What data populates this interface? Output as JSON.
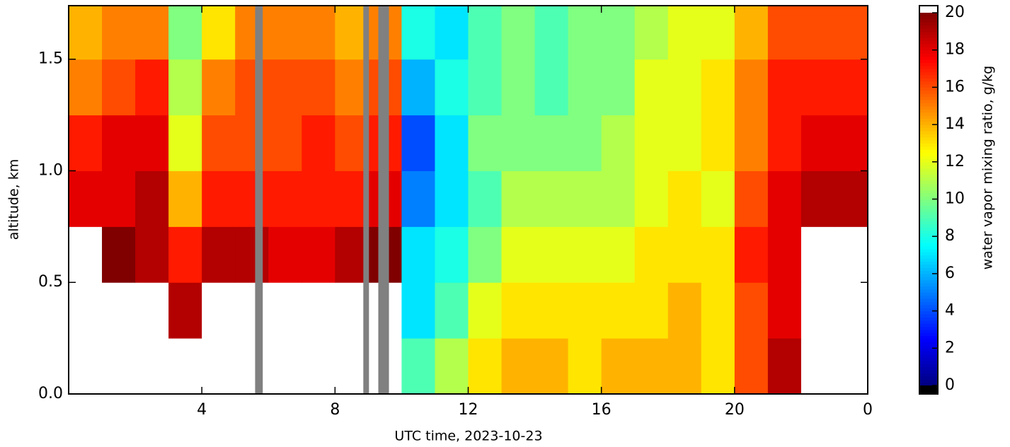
{
  "chart_data": {
    "type": "heatmap",
    "x_label": "UTC time,  2023-10-23",
    "y_label": "altitude, km",
    "colorbar_label": "water vapor mixing ratio, g/kg",
    "colormap": "jet",
    "over_color": "#ffffff",
    "under_color": "#000000",
    "missing_color": "#808080",
    "clim": [
      0,
      20
    ],
    "colorbar_ticks": [
      0,
      2,
      4,
      6,
      8,
      10,
      12,
      14,
      16,
      18,
      20
    ],
    "xlim": [
      0,
      24
    ],
    "xticks": [
      4,
      8,
      12,
      16,
      20,
      {
        "value": 24,
        "label": "0"
      }
    ],
    "ylim": [
      0,
      1.74
    ],
    "yticks": [
      {
        "value": 0,
        "label": "0.0"
      },
      0.5,
      {
        "value": 1,
        "label": "1.0"
      },
      1.5
    ],
    "x": [
      0.5,
      1.5,
      2.5,
      3.5,
      4.5,
      5.5,
      6.5,
      7.5,
      8.5,
      9.5,
      10.5,
      11.5,
      12.5,
      13.5,
      14.5,
      15.5,
      16.5,
      17.5,
      18.5,
      19.5,
      20.5,
      21.5,
      22.5,
      23.5
    ],
    "y": [
      0.125,
      0.375,
      0.625,
      0.875,
      1.125,
      1.375,
      1.625
    ],
    "z": [
      [
        21,
        21,
        21,
        21,
        21,
        21,
        21,
        21,
        21,
        21,
        9,
        11,
        13,
        14,
        14,
        13,
        14,
        14,
        14,
        13,
        16,
        19,
        21,
        21
      ],
      [
        21,
        21,
        21,
        19,
        21,
        21,
        21,
        21,
        21,
        21,
        7,
        9,
        12,
        13,
        13,
        13,
        13,
        13,
        14,
        13,
        16,
        18,
        21,
        21
      ],
      [
        21,
        20,
        19,
        17,
        19,
        19,
        18,
        18,
        19,
        20,
        7,
        8,
        10,
        12,
        12,
        12,
        12,
        13,
        13,
        13,
        17,
        18,
        21,
        21
      ],
      [
        18,
        18,
        19,
        14,
        17,
        17,
        17,
        17,
        17,
        18,
        5,
        7,
        9,
        11,
        11,
        11,
        11,
        12,
        13,
        12,
        16,
        18,
        19,
        19
      ],
      [
        17,
        18,
        18,
        12,
        16,
        16,
        16,
        17,
        16,
        17,
        4,
        7,
        10,
        10,
        10,
        10,
        11,
        12,
        12,
        13,
        15,
        17,
        18,
        18
      ],
      [
        15,
        16,
        17,
        11,
        15,
        16,
        16,
        16,
        15,
        16,
        6,
        8,
        9,
        10,
        9,
        10,
        10,
        12,
        12,
        13,
        15,
        17,
        17,
        17
      ],
      [
        14,
        15,
        15,
        10,
        13,
        15,
        15,
        15,
        14,
        15,
        8,
        7,
        9,
        10,
        9,
        10,
        10,
        11,
        12,
        12,
        14,
        16,
        16,
        16
      ]
    ],
    "missing": [
      [
        5.6,
        5.83
      ],
      [
        8.85,
        9.02
      ],
      [
        9.3,
        9.62
      ]
    ]
  }
}
